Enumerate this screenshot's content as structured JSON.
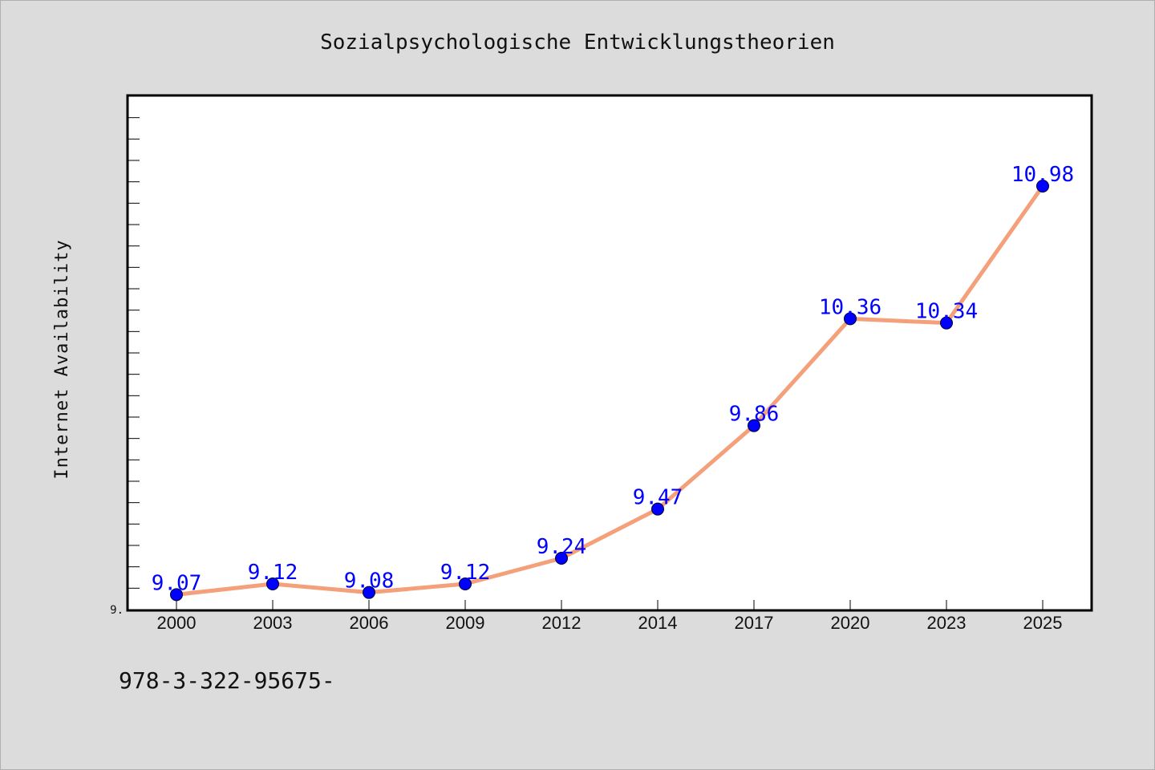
{
  "chart_data": {
    "type": "line",
    "title": "Sozialpsychologische Entwicklungstheorien",
    "ylabel": "Internet Availability",
    "xlabel": "",
    "x": [
      "2000",
      "2003",
      "2006",
      "2009",
      "2012",
      "2014",
      "2017",
      "2020",
      "2023",
      "2025"
    ],
    "series": [
      {
        "values": [
          9.07,
          9.12,
          9.08,
          9.12,
          9.24,
          9.47,
          9.86,
          10.36,
          10.34,
          10.98
        ]
      }
    ],
    "data_labels": [
      "9.07",
      "9.12",
      "9.08",
      "9.12",
      "9.24",
      "9.47",
      "9.86",
      "10.36",
      "10.34",
      "10.98"
    ],
    "ytick_labels": [
      "9."
    ],
    "ylim": [
      9.0,
      11.4
    ],
    "grid": false,
    "legend": "none",
    "colors": {
      "line": "#f4a07a",
      "marker": "#0000ff",
      "label": "#0000ff",
      "background": "#dcdcdc",
      "plot_background": "#ffffff"
    }
  },
  "footer": {
    "text": "978-3-322-95675-"
  }
}
